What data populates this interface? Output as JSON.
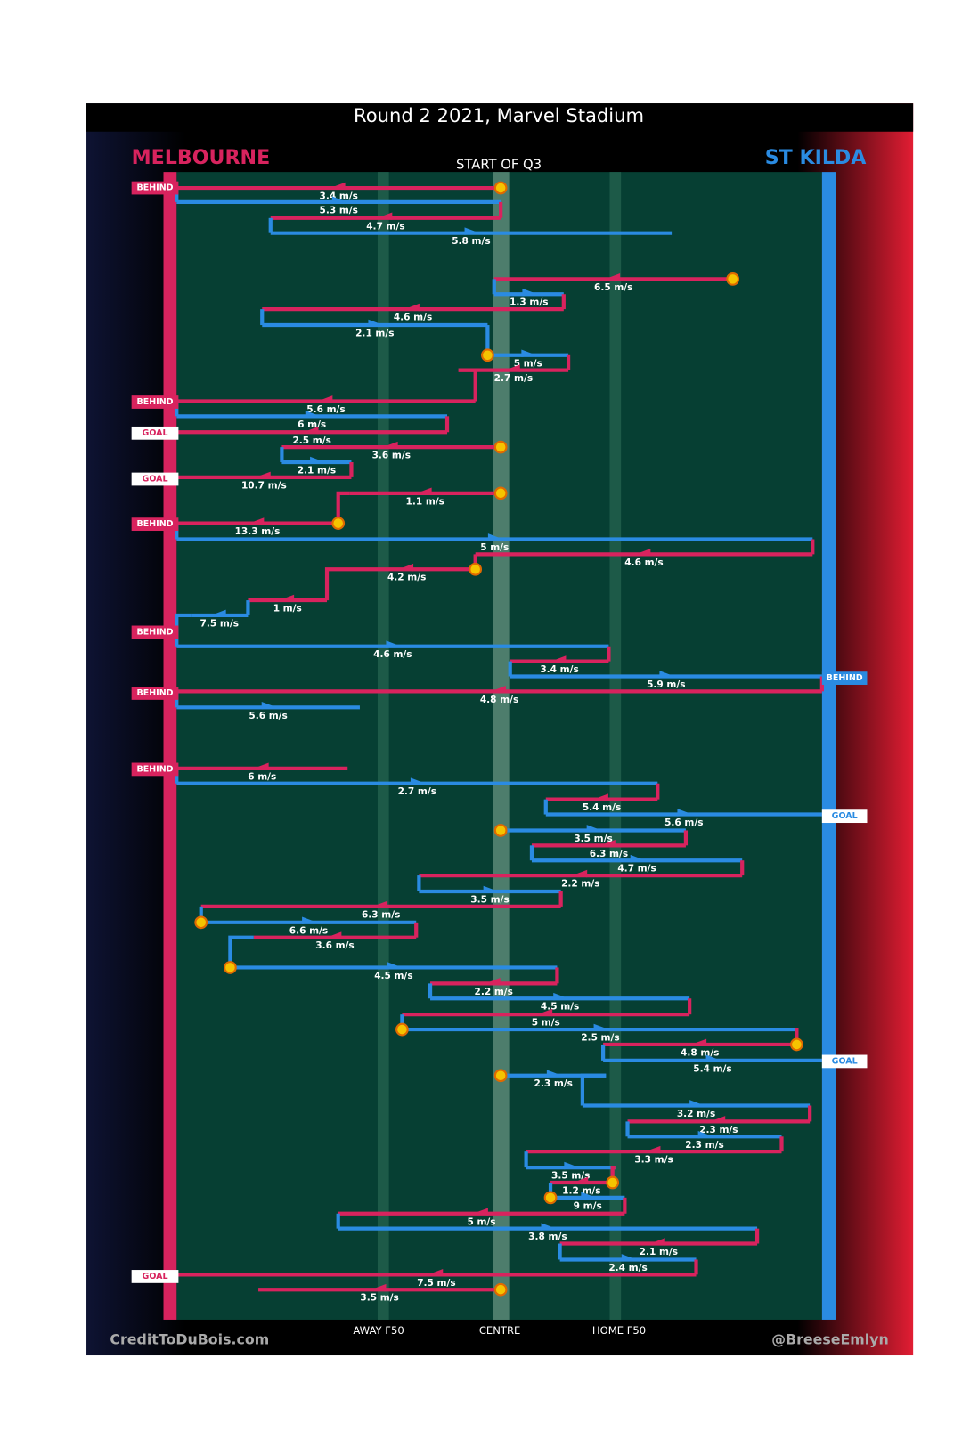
{
  "chart_data": {
    "type": "chain",
    "title": "Round 2 2021, Marvel Stadium",
    "subtitle": "START OF Q3",
    "series": [
      {
        "name": "MELBOURNE",
        "color": "#d8235e"
      },
      {
        "name": "ST KILDA",
        "color": "#2a8be2"
      }
    ],
    "field_labels": [
      "AWAY F50",
      "CENTRE",
      "HOME F50"
    ],
    "credit_left": "CreditToDuBois.com",
    "credit_right": "@BreeseEmlyn",
    "values": [
      3.4,
      5.3,
      4.7,
      5.8,
      6.5,
      1.3,
      4.6,
      2.1,
      5,
      2.7,
      5.6,
      6,
      2.5,
      3.6,
      2.1,
      10.7,
      1.1,
      13.3,
      5,
      4.6,
      4.2,
      1,
      7.5,
      4.6,
      3.4,
      5.9,
      4.8,
      5.6,
      6,
      2.7,
      5.4,
      5.6,
      3.5,
      6.3,
      4.7,
      2.2,
      3.5,
      6.3,
      6.6,
      3.6,
      4.5,
      2.2,
      4.5,
      5,
      2.5,
      4.8,
      5.4,
      2.3,
      3.2,
      2.3,
      2.3,
      3.3,
      3.5,
      1.2,
      9,
      5,
      3.8,
      2.1,
      2.4,
      7.5,
      3.5
    ],
    "value_labels": [
      "3.4 m/s",
      "5.3 m/s",
      "4.7 m/s",
      "5.8 m/s",
      "6.5 m/s",
      "1.3 m/s",
      "4.6 m/s",
      "2.1 m/s",
      "5 m/s",
      "2.7 m/s",
      "5.6 m/s",
      "6 m/s",
      "2.5 m/s",
      "3.6 m/s",
      "2.1 m/s",
      "10.7 m/s",
      "1.1 m/s",
      "13.3 m/s",
      "5 m/s",
      "4.6 m/s",
      "4.2 m/s",
      "1 m/s",
      "7.5 m/s",
      "4.6 m/s",
      "3.4 m/s",
      "5.9 m/s",
      "4.8 m/s",
      "5.6 m/s",
      "6 m/s",
      "2.7 m/s",
      "5.4 m/s",
      "5.6 m/s",
      "3.5 m/s",
      "6.3 m/s",
      "4.7 m/s",
      "2.2 m/s",
      "3.5 m/s",
      "6.3 m/s",
      "6.6 m/s",
      "3.6 m/s",
      "4.5 m/s",
      "2.2 m/s",
      "4.5 m/s",
      "5 m/s",
      "2.5 m/s",
      "4.8 m/s",
      "5.4 m/s",
      "2.3 m/s",
      "3.2 m/s",
      "2.3 m/s",
      "2.3 m/s",
      "3.3 m/s",
      "3.5 m/s",
      "1.2 m/s",
      "9 m/s",
      "5 m/s",
      "3.8 m/s",
      "2.1 m/s",
      "2.4 m/s",
      "7.5 m/s",
      "3.5 m/s"
    ],
    "outcomes": [
      "BEHIND",
      "BEHIND",
      "GOAL",
      "GOAL",
      "BEHIND",
      "BEHIND",
      "BEHIND",
      "BEHIND",
      "GOAL",
      "BEHIND",
      "GOAL",
      "GOAL"
    ]
  }
}
